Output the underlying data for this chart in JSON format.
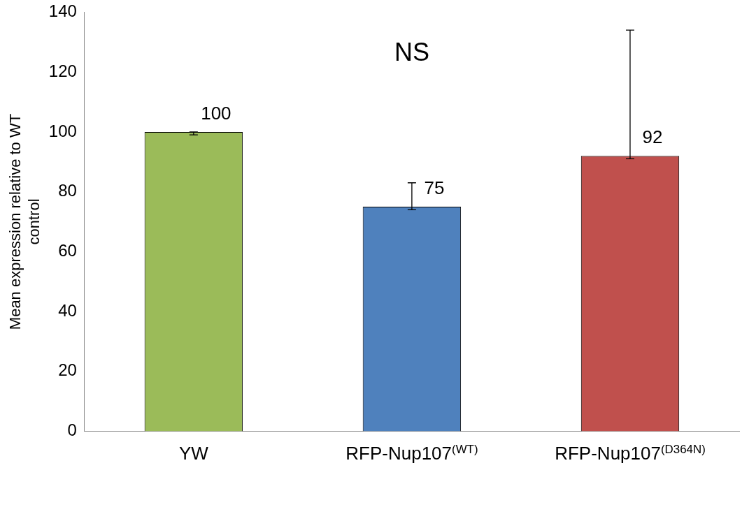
{
  "chart_data": {
    "type": "bar",
    "annotations": [
      "NS"
    ],
    "ylabel": "Mean expression relative to WT control",
    "categories": [
      "YW",
      "RFP-Nup107$^{(WT)}$",
      "RFP-Nup107$^{(D364N)}$"
    ],
    "values": [
      100,
      75,
      92
    ],
    "colors": [
      "#9bbb59",
      "#4f81bd",
      "#c0504d"
    ],
    "errors": [
      [
        99,
        100
      ],
      [
        74,
        83
      ],
      [
        91,
        134
      ]
    ],
    "data_labels": true,
    "ylim": [
      0,
      140
    ],
    "yticks": [
      0,
      20,
      40,
      60,
      80,
      100,
      120,
      140
    ],
    "grid": false,
    "legend": false
  }
}
